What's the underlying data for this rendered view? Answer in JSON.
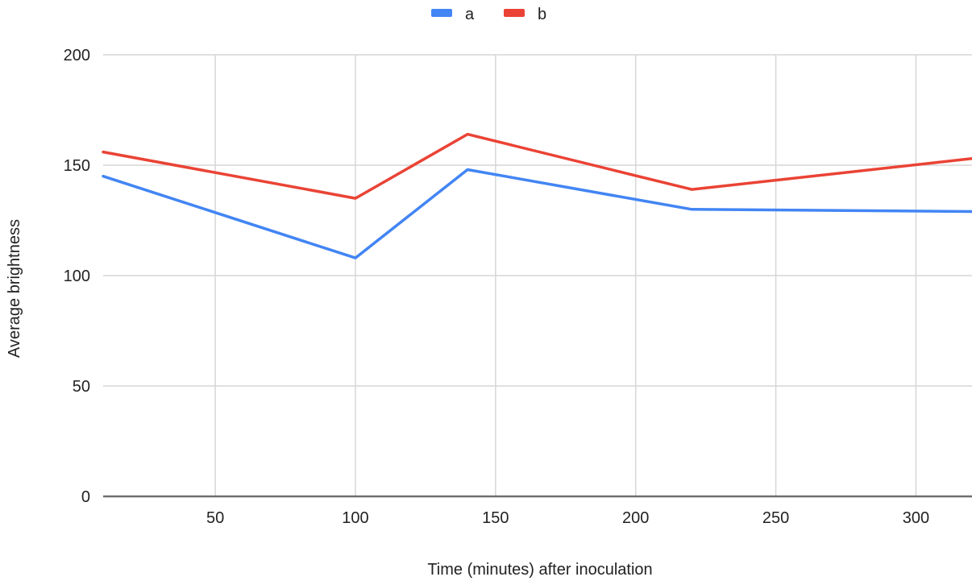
{
  "chart_data": {
    "type": "line",
    "title": "",
    "xlabel": "Time (minutes) after inoculation",
    "ylabel": "Average brightness",
    "xlim": [
      10,
      320
    ],
    "ylim": [
      0,
      200
    ],
    "x_ticks": [
      50,
      100,
      150,
      200,
      250,
      300
    ],
    "y_ticks": [
      0,
      50,
      100,
      150,
      200
    ],
    "grid": true,
    "legend_position": "top",
    "series": [
      {
        "name": "a",
        "color": "#4285f4",
        "x": [
          10,
          100,
          140,
          220,
          320
        ],
        "y": [
          145,
          108,
          148,
          130,
          129
        ]
      },
      {
        "name": "b",
        "color": "#ea4335",
        "x": [
          10,
          100,
          140,
          220,
          320
        ],
        "y": [
          156,
          135,
          164,
          139,
          153
        ]
      }
    ]
  }
}
